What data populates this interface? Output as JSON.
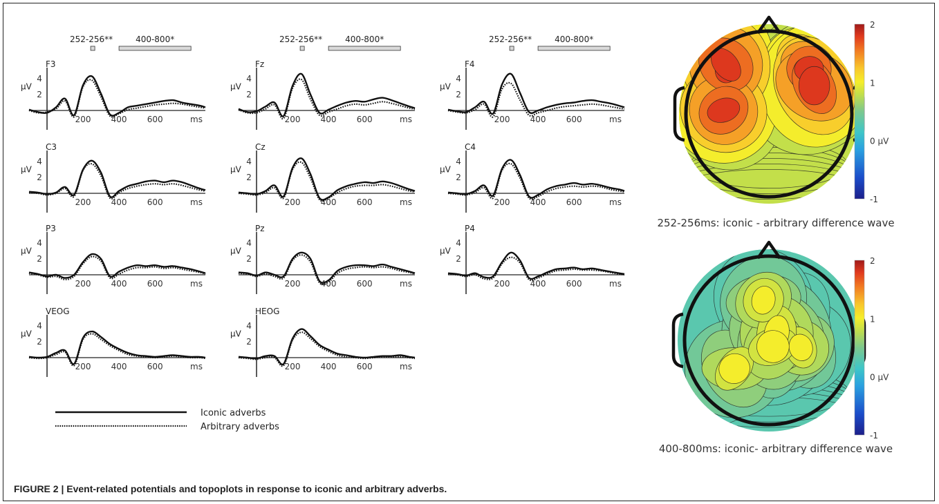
{
  "caption": {
    "label": "FIGURE 2 |",
    "text": "Event-related potentials and topoplots in response to iconic and arbitrary adverbs."
  },
  "chart_data": [
    {
      "type": "line",
      "panel": "erp",
      "x_unit": "ms",
      "y_unit": "μV",
      "x_ticks": [
        200,
        400,
        600
      ],
      "y_ticks": [
        2,
        4
      ],
      "xlim": [
        -100,
        880
      ],
      "ylim": [
        -2,
        6
      ],
      "x": [
        -100,
        -50,
        0,
        50,
        100,
        150,
        200,
        250,
        300,
        350,
        400,
        450,
        500,
        550,
        600,
        650,
        700,
        750,
        800,
        850,
        880
      ],
      "legend": [
        {
          "name": "Iconic adverbs",
          "style": "solid"
        },
        {
          "name": "Arbitrary adverbs",
          "style": "dotted"
        }
      ],
      "significance": [
        {
          "label": "252-256**",
          "range": [
            252,
            256
          ]
        },
        {
          "label": "400-800*",
          "range": [
            400,
            800
          ]
        }
      ],
      "channels": [
        {
          "name": "F3",
          "sig": true,
          "iconic": [
            0.1,
            -0.2,
            -0.3,
            0.4,
            1.5,
            -0.6,
            3.2,
            4.3,
            2.1,
            -0.5,
            -0.3,
            0.4,
            0.6,
            0.8,
            1.0,
            1.2,
            1.3,
            1.0,
            0.8,
            0.6,
            0.4
          ],
          "arbitrary": [
            0.0,
            -0.3,
            -0.2,
            0.2,
            1.2,
            -0.8,
            3.0,
            3.8,
            1.7,
            -0.7,
            -0.4,
            0.1,
            0.3,
            0.5,
            0.7,
            0.8,
            0.9,
            0.8,
            0.6,
            0.4,
            0.3
          ]
        },
        {
          "name": "Fz",
          "sig": true,
          "iconic": [
            0.2,
            -0.2,
            -0.1,
            0.5,
            1.0,
            -0.7,
            3.1,
            4.6,
            2.0,
            -0.3,
            0.1,
            0.6,
            1.0,
            1.2,
            1.1,
            1.4,
            1.6,
            1.3,
            0.9,
            0.5,
            0.3
          ],
          "arbitrary": [
            0.1,
            -0.3,
            -0.3,
            0.2,
            0.7,
            -1.0,
            2.8,
            3.9,
            1.4,
            -0.6,
            -0.2,
            0.2,
            0.6,
            0.8,
            0.7,
            0.9,
            1.1,
            0.9,
            0.6,
            0.3,
            0.2
          ]
        },
        {
          "name": "F4",
          "sig": true,
          "iconic": [
            0.1,
            -0.1,
            -0.2,
            0.4,
            1.1,
            -0.4,
            3.3,
            4.6,
            2.2,
            -0.2,
            0.0,
            0.4,
            0.7,
            0.9,
            1.0,
            1.2,
            1.3,
            1.1,
            0.9,
            0.6,
            0.4
          ],
          "arbitrary": [
            0.0,
            -0.2,
            -0.3,
            0.1,
            0.8,
            -0.8,
            2.7,
            3.4,
            1.3,
            -0.6,
            -0.3,
            0.0,
            0.3,
            0.5,
            0.6,
            0.7,
            0.8,
            0.7,
            0.5,
            0.3,
            0.2
          ]
        },
        {
          "name": "C3",
          "sig": false,
          "iconic": [
            0.2,
            0.1,
            -0.1,
            0.1,
            0.8,
            -0.2,
            3.0,
            4.1,
            2.6,
            -0.4,
            0.3,
            0.9,
            1.2,
            1.5,
            1.6,
            1.4,
            1.6,
            1.4,
            1.0,
            0.6,
            0.4
          ],
          "arbitrary": [
            0.1,
            0.0,
            -0.2,
            0.0,
            0.6,
            -0.4,
            2.9,
            3.7,
            2.2,
            -0.6,
            0.1,
            0.6,
            0.9,
            1.1,
            1.2,
            1.1,
            1.2,
            1.0,
            0.7,
            0.4,
            0.3
          ]
        },
        {
          "name": "Cz",
          "sig": false,
          "iconic": [
            0.1,
            0.0,
            -0.1,
            0.3,
            1.0,
            -0.4,
            3.2,
            4.4,
            2.4,
            -0.6,
            -0.5,
            0.4,
            0.9,
            1.2,
            1.4,
            1.3,
            1.5,
            1.3,
            0.9,
            0.5,
            0.3
          ],
          "arbitrary": [
            0.0,
            -0.1,
            -0.2,
            0.1,
            0.7,
            -0.6,
            3.0,
            3.9,
            1.9,
            -0.8,
            -0.6,
            0.1,
            0.6,
            0.9,
            1.0,
            1.0,
            1.1,
            0.9,
            0.6,
            0.3,
            0.2
          ]
        },
        {
          "name": "C4",
          "sig": false,
          "iconic": [
            0.1,
            0.0,
            -0.1,
            0.3,
            1.0,
            -0.3,
            3.1,
            4.2,
            2.3,
            -0.4,
            -0.2,
            0.5,
            0.9,
            1.1,
            1.3,
            1.1,
            1.2,
            1.0,
            0.7,
            0.5,
            0.3
          ],
          "arbitrary": [
            0.0,
            -0.1,
            -0.2,
            0.1,
            0.7,
            -0.6,
            2.9,
            3.7,
            1.9,
            -0.6,
            -0.4,
            0.2,
            0.6,
            0.8,
            0.9,
            0.8,
            0.9,
            0.8,
            0.5,
            0.3,
            0.2
          ]
        },
        {
          "name": "P3",
          "sig": false,
          "iconic": [
            0.3,
            0.1,
            -0.2,
            0.0,
            -0.4,
            0.0,
            1.6,
            2.6,
            2.0,
            -0.2,
            0.4,
            0.9,
            1.2,
            1.1,
            1.2,
            1.0,
            1.1,
            0.9,
            0.7,
            0.4,
            0.2
          ],
          "arbitrary": [
            0.2,
            0.0,
            -0.3,
            -0.2,
            -0.6,
            -0.2,
            1.4,
            2.3,
            1.7,
            -0.4,
            0.1,
            0.6,
            0.9,
            0.9,
            1.0,
            0.8,
            0.9,
            0.7,
            0.5,
            0.3,
            0.1
          ]
        },
        {
          "name": "Pz",
          "sig": false,
          "iconic": [
            0.3,
            0.2,
            -0.1,
            0.3,
            0.0,
            -0.2,
            2.0,
            2.8,
            2.0,
            -0.8,
            -0.7,
            0.5,
            1.0,
            1.2,
            1.2,
            1.1,
            1.3,
            1.0,
            0.7,
            0.4,
            0.2
          ],
          "arbitrary": [
            0.2,
            0.1,
            -0.2,
            0.1,
            -0.2,
            -0.4,
            1.8,
            2.5,
            1.6,
            -1.0,
            -0.9,
            0.2,
            0.7,
            0.9,
            1.0,
            0.9,
            1.0,
            0.8,
            0.5,
            0.3,
            0.1
          ]
        },
        {
          "name": "P4",
          "sig": false,
          "iconic": [
            0.2,
            0.1,
            -0.1,
            0.2,
            -0.3,
            -0.2,
            1.6,
            2.8,
            1.8,
            -0.4,
            -0.2,
            0.3,
            0.7,
            0.8,
            0.9,
            0.7,
            0.8,
            0.6,
            0.4,
            0.2,
            0.1
          ],
          "arbitrary": [
            0.1,
            0.0,
            -0.2,
            0.0,
            -0.5,
            -0.4,
            1.4,
            2.2,
            1.5,
            -0.6,
            -0.4,
            0.1,
            0.5,
            0.6,
            0.7,
            0.6,
            0.6,
            0.5,
            0.3,
            0.1,
            0.0
          ]
        },
        {
          "name": "VEOG",
          "sig": false,
          "iconic": [
            0.1,
            0.0,
            0.1,
            0.6,
            0.9,
            -0.8,
            2.5,
            3.3,
            2.6,
            1.7,
            1.1,
            0.6,
            0.3,
            0.2,
            0.1,
            0.2,
            0.3,
            0.2,
            0.1,
            0.1,
            0.0
          ],
          "arbitrary": [
            0.0,
            -0.1,
            0.0,
            0.4,
            0.7,
            -1.0,
            2.3,
            3.0,
            2.3,
            1.5,
            0.9,
            0.4,
            0.2,
            0.1,
            0.0,
            0.1,
            0.2,
            0.1,
            0.0,
            0.0,
            -0.1
          ]
        },
        {
          "name": "HEOG",
          "sig": false,
          "iconic": [
            0.1,
            0.0,
            -0.1,
            0.2,
            0.2,
            -0.8,
            2.4,
            3.6,
            2.7,
            1.6,
            1.0,
            0.5,
            0.3,
            0.1,
            0.0,
            0.1,
            0.2,
            0.2,
            0.3,
            0.1,
            0.0
          ],
          "arbitrary": [
            0.0,
            -0.1,
            -0.2,
            0.0,
            0.0,
            -1.0,
            2.2,
            3.2,
            2.4,
            1.4,
            0.8,
            0.3,
            0.1,
            0.0,
            -0.1,
            0.0,
            0.1,
            0.1,
            0.1,
            0.0,
            -0.1
          ]
        }
      ]
    },
    {
      "type": "heatmap",
      "panel": "topoplot-1",
      "title": "252-256ms: iconic - arbitrary difference wave",
      "colorbar": {
        "min": -1,
        "max": 2,
        "ticks": [
          "2",
          "1",
          "0 μV",
          "-1"
        ]
      },
      "level_range": [
        0.8,
        1.8
      ]
    },
    {
      "type": "heatmap",
      "panel": "topoplot-2",
      "title": "400-800ms: iconic- arbitrary difference wave",
      "colorbar": {
        "min": -1,
        "max": 2,
        "ticks": [
          "2",
          "1",
          "0 μV",
          "-1"
        ]
      },
      "level_range": [
        0.3,
        1.0
      ]
    }
  ]
}
